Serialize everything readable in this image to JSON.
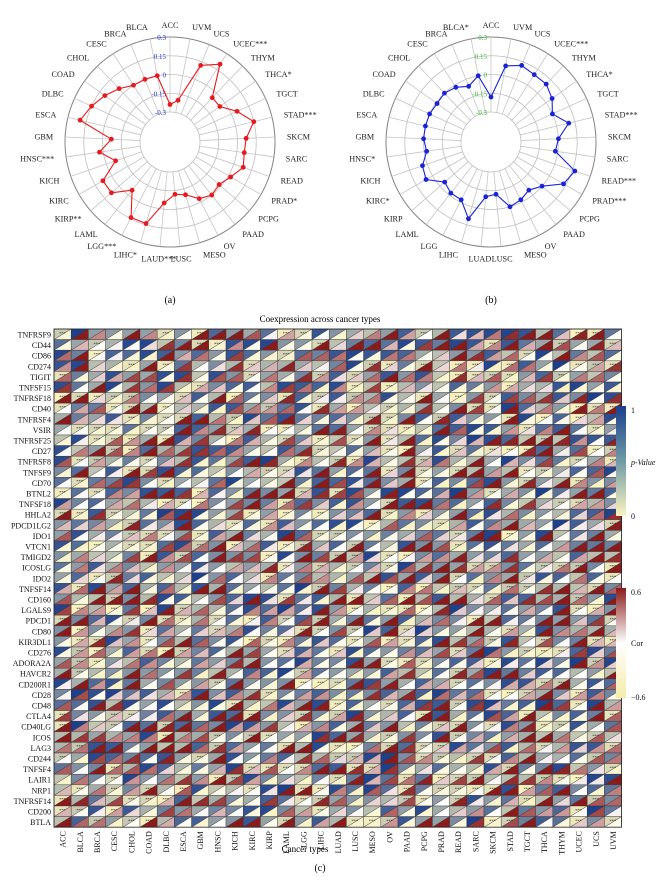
{
  "radar_a": {
    "panel_label": "(a)",
    "line_color": "#e8191d",
    "tick_color": "#2233cc",
    "tick_labels": [
      "0.3",
      "0.15",
      "0",
      "-0.15",
      "-0.3"
    ],
    "range": [
      -0.3,
      0.3
    ],
    "categories": [
      "ACC",
      "UVM",
      "UCS",
      "UCEC***",
      "THYM",
      "THCA*",
      "TGCT",
      "STAD***",
      "SKCM",
      "SARC",
      "READ",
      "PRAD*",
      "PCPG",
      "PAAD",
      "OV",
      "MESO",
      "LUSC",
      "LAUD***",
      "LIHC*",
      "LGG***",
      "LAML",
      "KIRP**",
      "KIRC",
      "KICH",
      "HNSC***",
      "GBM",
      "ESCA",
      "DLBC",
      "COAD",
      "CHOL",
      "CESC",
      "BRCA",
      "BLCA"
    ],
    "values": [
      -0.24,
      -0.2,
      0.12,
      0.2,
      -0.05,
      -0.05,
      0.05,
      0.15,
      0.07,
      0.06,
      0.08,
      0.02,
      -0.02,
      0.0,
      -0.03,
      -0.1,
      -0.12,
      -0.05,
      0.14,
      0.14,
      -0.05,
      0.08,
      0.08,
      -0.08,
      0.03,
      -0.07,
      0.2,
      0.15,
      0.1,
      0.05,
      0.0,
      0.0,
      0.0
    ]
  },
  "radar_b": {
    "panel_label": "(b)",
    "line_color": "#1a23d6",
    "tick_color": "#33bb33",
    "tick_labels": [
      "0.3",
      "0.15",
      "0",
      "-0.15",
      "-0.3"
    ],
    "range": [
      -0.3,
      0.3
    ],
    "categories": [
      "ACC",
      "UVM",
      "UCS",
      "UCEC***",
      "THYM",
      "THCA*",
      "TGCT",
      "STAD***",
      "SKCM",
      "SARC",
      "READ***",
      "PRAD***",
      "PCPG",
      "PAAD",
      "OV",
      "MESO",
      "LUSC",
      "LUAD",
      "LIHC",
      "LGG",
      "LAML",
      "KIRP",
      "KIRC*",
      "KICH",
      "HNSC*",
      "GBM",
      "ESCA",
      "DLBC",
      "COAD",
      "CHOL",
      "CESC",
      "BRCA",
      "BLCA*"
    ],
    "values": [
      -0.18,
      0.08,
      0.12,
      0.1,
      0.1,
      0.06,
      0.0,
      0.1,
      0.0,
      -0.02,
      0.17,
      0.13,
      0.0,
      -0.05,
      -0.02,
      0.0,
      -0.12,
      -0.1,
      0.1,
      -0.02,
      -0.02,
      -0.05,
      0.06,
      0.04,
      -0.02,
      0.0,
      0.0,
      0.0,
      -0.01,
      0.0,
      -0.02,
      -0.06,
      0.0
    ]
  },
  "heatmap": {
    "panel_label": "(c)",
    "title": "Coexpression across cancer types",
    "xlabel": "Cancer types",
    "genes": [
      "TNFRSF9",
      "CD44",
      "CD86",
      "CD274",
      "TIGIT",
      "TNFSF15",
      "TNFRSF18",
      "CD40",
      "TNFRSF4",
      "VSIR",
      "TNFRSF25",
      "CD27",
      "TNFRSF8",
      "TNFSF9",
      "CD70",
      "BTNL2",
      "TNFSF18",
      "HHLA2",
      "PDCD1LG2",
      "IDO1",
      "VTCN1",
      "TMIGD2",
      "ICOSLG",
      "IDO2",
      "TNFSF14",
      "CD160",
      "LGALS9",
      "PDCD1",
      "CD80",
      "KIR3DL1",
      "CD276",
      "ADORA2A",
      "HAVCR2",
      "CD200R1",
      "CD28",
      "CD48",
      "CTLA4",
      "CD40LG",
      "ICOS",
      "LAG3",
      "CD244",
      "TNFSF4",
      "LAIR1",
      "NRP1",
      "TNFRSF14",
      "CD200",
      "BTLA"
    ],
    "cancers": [
      "ACC",
      "BLCA",
      "BRCA",
      "CESC",
      "CHOL",
      "COAD",
      "DLBC",
      "ESCA",
      "GBM",
      "HNSC",
      "KICH",
      "KIRC",
      "KIRP",
      "LAML",
      "LGG",
      "LIHC",
      "LUAD",
      "LUSC",
      "MESO",
      "OV",
      "PAAD",
      "PCPG",
      "PRAD",
      "READ",
      "SARC",
      "SKCM",
      "STAD",
      "TGCT",
      "THCA",
      "THYM",
      "UCEC",
      "UCS",
      "UVM"
    ],
    "pvalue_legend": {
      "title": "p-Value",
      "max_label": "1",
      "min_label": "0",
      "high_color": "#1c3f8c",
      "low_color": "#fbf4bf"
    },
    "cor_legend": {
      "title": "Cor",
      "max_label": "0.6",
      "min_label": "−0.6",
      "high_color": "#8b1b1b",
      "mid_color": "#ffffff",
      "low_color": "#f5eca8"
    },
    "star_label": "***"
  }
}
